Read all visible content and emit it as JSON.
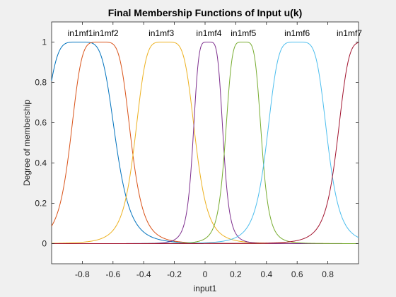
{
  "chart_data": {
    "type": "line",
    "title": "Final Membership Functions of Input u(k)",
    "xlabel": "input1",
    "ylabel": "Degree of membership",
    "xlim": [
      -1,
      1
    ],
    "ylim": [
      -0.1,
      1.1
    ],
    "x_ticks": [
      -0.8,
      -0.6,
      -0.4,
      -0.2,
      0,
      0.2,
      0.4,
      0.6,
      0.8
    ],
    "x_tick_labels": [
      "-0.8",
      "-0.6",
      "-0.4",
      "-0.2",
      "0",
      "0.2",
      "0.4",
      "0.6",
      "0.8"
    ],
    "y_ticks": [
      0,
      0.2,
      0.4,
      0.6,
      0.8,
      1
    ],
    "y_tick_labels": [
      "0",
      "0.2",
      "0.4",
      "0.6",
      "0.8",
      "1"
    ],
    "grid": false,
    "function_type": "gbellmf",
    "series": [
      {
        "name": "in1mf1",
        "params": {
          "a": 0.24,
          "b": 2.5,
          "c": -0.82
        },
        "color": "#0072bd"
      },
      {
        "name": "in1mf2",
        "params": {
          "a": 0.2,
          "b": 2.5,
          "c": -0.68
        },
        "color": "#d95319"
      },
      {
        "name": "in1mf3",
        "params": {
          "a": 0.2,
          "b": 2.5,
          "c": -0.26
        },
        "color": "#edb120"
      },
      {
        "name": "in1mf4",
        "params": {
          "a": 0.1,
          "b": 2.5,
          "c": 0.02
        },
        "color": "#7e2f8e"
      },
      {
        "name": "in1mf5",
        "params": {
          "a": 0.12,
          "b": 2.5,
          "c": 0.25
        },
        "color": "#77ac30"
      },
      {
        "name": "in1mf6",
        "params": {
          "a": 0.2,
          "b": 2.5,
          "c": 0.6
        },
        "color": "#4dbeee"
      },
      {
        "name": "in1mf7",
        "params": {
          "a": 0.2,
          "b": 2.5,
          "c": 1.06
        },
        "color": "#a2142f"
      }
    ],
    "mf_labels": [
      {
        "text": "in1mf1in1mf2",
        "x": -0.73
      },
      {
        "text": "in1mf3",
        "x": -0.285
      },
      {
        "text": "in1mf4",
        "x": 0.025
      },
      {
        "text": "in1mf5",
        "x": 0.25
      },
      {
        "text": "in1mf6",
        "x": 0.6
      },
      {
        "text": "in1mf7",
        "x": 0.94
      }
    ]
  }
}
